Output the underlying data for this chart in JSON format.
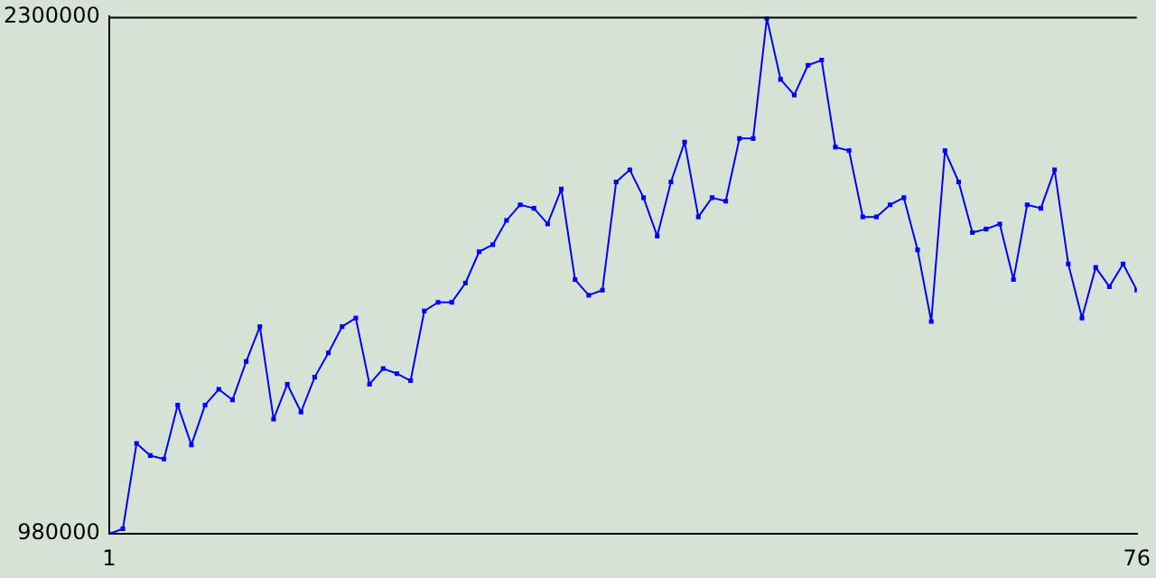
{
  "chart_data": {
    "type": "line",
    "x": [
      1,
      2,
      3,
      4,
      5,
      6,
      7,
      8,
      9,
      10,
      11,
      12,
      13,
      14,
      15,
      16,
      17,
      18,
      19,
      20,
      21,
      22,
      23,
      24,
      25,
      26,
      27,
      28,
      29,
      30,
      31,
      32,
      33,
      34,
      35,
      36,
      37,
      38,
      39,
      40,
      41,
      42,
      43,
      44,
      45,
      46,
      47,
      48,
      49,
      50,
      51,
      52,
      53,
      54,
      55,
      56,
      57,
      58,
      59,
      60,
      61,
      62,
      63,
      64,
      65,
      66,
      67,
      68,
      69,
      70,
      71,
      72,
      73,
      74,
      75,
      76
    ],
    "series": [
      {
        "color": "#0000ff",
        "values": [
          980000,
          993000,
          1211000,
          1180000,
          1171000,
          1309000,
          1207000,
          1309000,
          1349000,
          1322000,
          1420000,
          1509000,
          1273000,
          1362000,
          1291000,
          1380000,
          1442000,
          1509000,
          1531000,
          1362000,
          1402000,
          1389000,
          1371000,
          1549000,
          1571000,
          1571000,
          1620000,
          1700000,
          1718000,
          1780000,
          1820000,
          1811000,
          1771000,
          1860000,
          1629000,
          1589000,
          1602000,
          1878000,
          1909000,
          1838000,
          1740000,
          1878000,
          1980000,
          1789000,
          1838000,
          1829000,
          1989000,
          1989000,
          2296000,
          2140000,
          2100000,
          2176000,
          2189000,
          1967000,
          1958000,
          1789000,
          1789000,
          1820000,
          1838000,
          1705000,
          1522000,
          1958000,
          1878000,
          1749000,
          1758000,
          1771000,
          1629000,
          1820000,
          1811000,
          1909000,
          1669000,
          1531000,
          1660000,
          1611000,
          1669000,
          1602000
        ]
      }
    ],
    "xlim": [
      1,
      76
    ],
    "xticks": [
      1,
      76
    ],
    "ylim": [
      980000,
      2300000
    ],
    "yticks": [
      980000,
      2300000
    ],
    "grid": false,
    "legend": false,
    "marker": "square",
    "line_style": "solid"
  }
}
